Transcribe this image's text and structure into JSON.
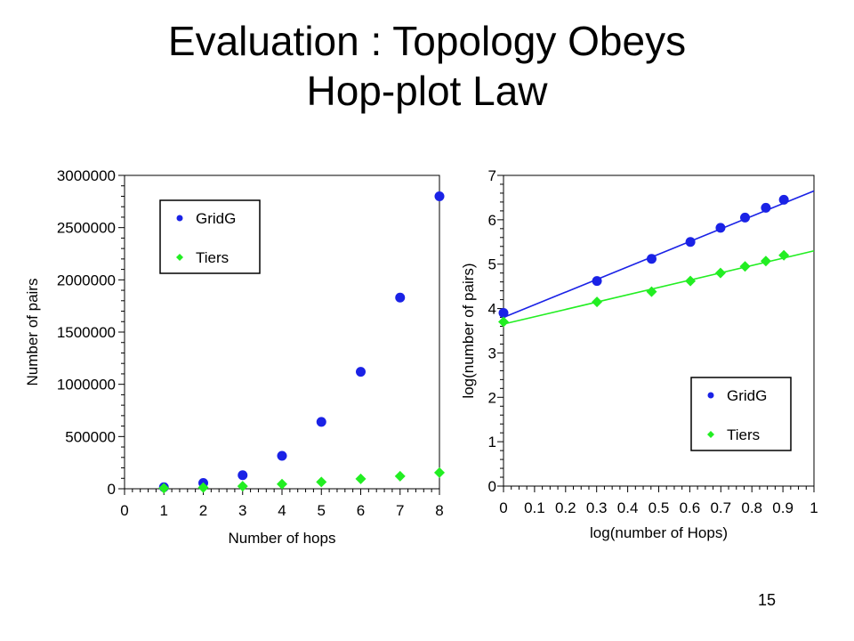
{
  "slide": {
    "title_line1": "Evaluation : Topology Obeys",
    "title_line2": "Hop-plot Law",
    "page_number": "15"
  },
  "colors": {
    "gridg": "#1a22e6",
    "tiers": "#22ee22"
  },
  "chart_data": [
    {
      "type": "scatter",
      "xlabel": "Number of hops",
      "ylabel": "Number of pairs",
      "xlim": [
        0,
        8
      ],
      "ylim": [
        0,
        3000000
      ],
      "xticks": [
        "0",
        "1",
        "2",
        "3",
        "4",
        "5",
        "6",
        "7",
        "8"
      ],
      "yticks": [
        "0",
        "500000",
        "1000000",
        "1500000",
        "2000000",
        "2500000",
        "3000000"
      ],
      "xtick_values": [
        0,
        1,
        2,
        3,
        4,
        5,
        6,
        7,
        8
      ],
      "ytick_values": [
        0,
        500000,
        1000000,
        1500000,
        2000000,
        2500000,
        3000000
      ],
      "legend_position": "top-left",
      "series": [
        {
          "name": "GridG",
          "marker": "circle",
          "x": [
            1,
            2,
            3,
            4,
            5,
            6,
            7,
            8
          ],
          "y": [
            15000,
            55000,
            130000,
            315000,
            640000,
            1120000,
            1830000,
            2800000
          ]
        },
        {
          "name": "Tiers",
          "marker": "diamond",
          "x": [
            1,
            2,
            3,
            4,
            5,
            6,
            7,
            8
          ],
          "y": [
            5000,
            12000,
            25000,
            45000,
            65000,
            95000,
            120000,
            155000
          ]
        }
      ]
    },
    {
      "type": "scatter",
      "xlabel": "log(number of Hops)",
      "ylabel": "log(number of pairs)",
      "xlim": [
        0,
        1
      ],
      "ylim": [
        0,
        7
      ],
      "xticks": [
        "0",
        "0.1",
        "0.2",
        "0.3",
        "0.4",
        "0.5",
        "0.6",
        "0.7",
        "0.8",
        "0.9",
        "1"
      ],
      "yticks": [
        "0",
        "1",
        "2",
        "3",
        "4",
        "5",
        "6",
        "7"
      ],
      "xtick_values": [
        0,
        0.1,
        0.2,
        0.3,
        0.4,
        0.5,
        0.6,
        0.7,
        0.8,
        0.9,
        1
      ],
      "ytick_values": [
        0,
        1,
        2,
        3,
        4,
        5,
        6,
        7
      ],
      "legend_position": "bottom-right",
      "series": [
        {
          "name": "GridG",
          "marker": "circle",
          "x": [
            0,
            0.301,
            0.477,
            0.602,
            0.699,
            0.778,
            0.845,
            0.903
          ],
          "y": [
            3.9,
            4.62,
            5.12,
            5.5,
            5.82,
            6.05,
            6.27,
            6.45
          ],
          "fit": {
            "x": [
              0,
              1
            ],
            "y": [
              3.8,
              6.65
            ]
          }
        },
        {
          "name": "Tiers",
          "marker": "diamond",
          "x": [
            0,
            0.301,
            0.477,
            0.602,
            0.699,
            0.778,
            0.845,
            0.903
          ],
          "y": [
            3.7,
            4.15,
            4.38,
            4.62,
            4.8,
            4.95,
            5.07,
            5.2
          ],
          "fit": {
            "x": [
              0,
              1
            ],
            "y": [
              3.65,
              5.3
            ]
          }
        }
      ]
    }
  ]
}
